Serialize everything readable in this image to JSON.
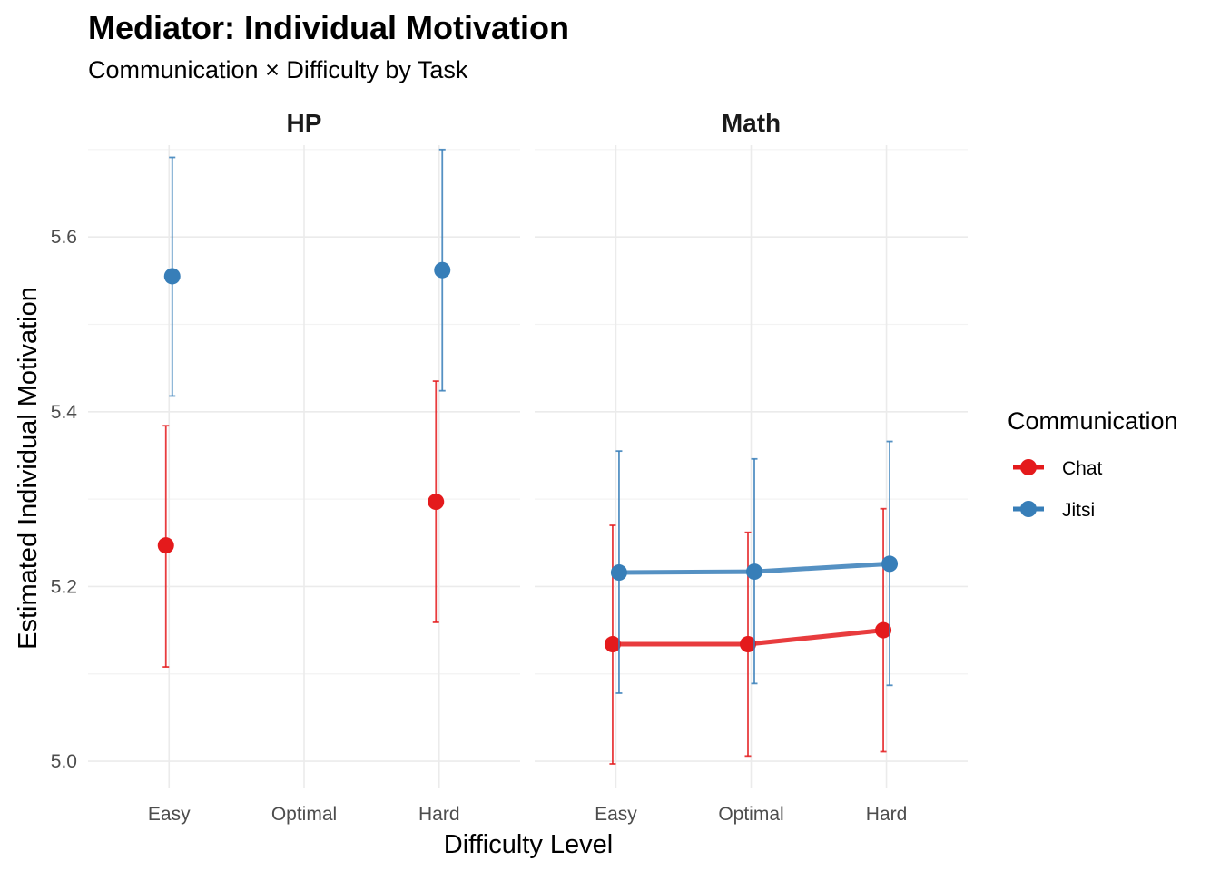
{
  "chart_data": {
    "type": "line",
    "title": "Mediator: Individual Motivation",
    "subtitle": "Communication × Difficulty by Task",
    "xlabel": "Difficulty Level",
    "ylabel": "Estimated Individual Motivation",
    "categories": [
      "Easy",
      "Optimal",
      "Hard"
    ],
    "ylim": [
      4.97,
      5.705
    ],
    "y_ticks": [
      5.0,
      5.2,
      5.4,
      5.6
    ],
    "y_tick_labels": [
      "5.0",
      "5.2",
      "5.4",
      "5.6"
    ],
    "grid": true,
    "legend": {
      "title": "Communication",
      "position": "right",
      "entries": [
        {
          "name": "Chat",
          "color": "#E41A1C"
        },
        {
          "name": "Jitsi",
          "color": "#377EB8"
        }
      ]
    },
    "panels": [
      {
        "name": "HP",
        "series": [
          {
            "name": "Chat",
            "color": "#E41A1C",
            "points": [
              {
                "x": "Easy",
                "y": 5.247,
                "lower": 5.108,
                "upper": 5.384
              },
              {
                "x": "Hard",
                "y": 5.297,
                "lower": 5.159,
                "upper": 5.435
              }
            ]
          },
          {
            "name": "Jitsi",
            "color": "#377EB8",
            "points": [
              {
                "x": "Easy",
                "y": 5.555,
                "lower": 5.418,
                "upper": 5.691
              },
              {
                "x": "Hard",
                "y": 5.562,
                "lower": 5.424,
                "upper": 5.7
              }
            ]
          }
        ]
      },
      {
        "name": "Math",
        "series": [
          {
            "name": "Chat",
            "color": "#E41A1C",
            "points": [
              {
                "x": "Easy",
                "y": 5.134,
                "lower": 4.997,
                "upper": 5.27
              },
              {
                "x": "Optimal",
                "y": 5.134,
                "lower": 5.006,
                "upper": 5.262
              },
              {
                "x": "Hard",
                "y": 5.15,
                "lower": 5.011,
                "upper": 5.289
              }
            ]
          },
          {
            "name": "Jitsi",
            "color": "#377EB8",
            "points": [
              {
                "x": "Easy",
                "y": 5.216,
                "lower": 5.078,
                "upper": 5.355
              },
              {
                "x": "Optimal",
                "y": 5.217,
                "lower": 5.089,
                "upper": 5.346
              },
              {
                "x": "Hard",
                "y": 5.226,
                "lower": 5.087,
                "upper": 5.366
              }
            ]
          }
        ]
      }
    ]
  }
}
